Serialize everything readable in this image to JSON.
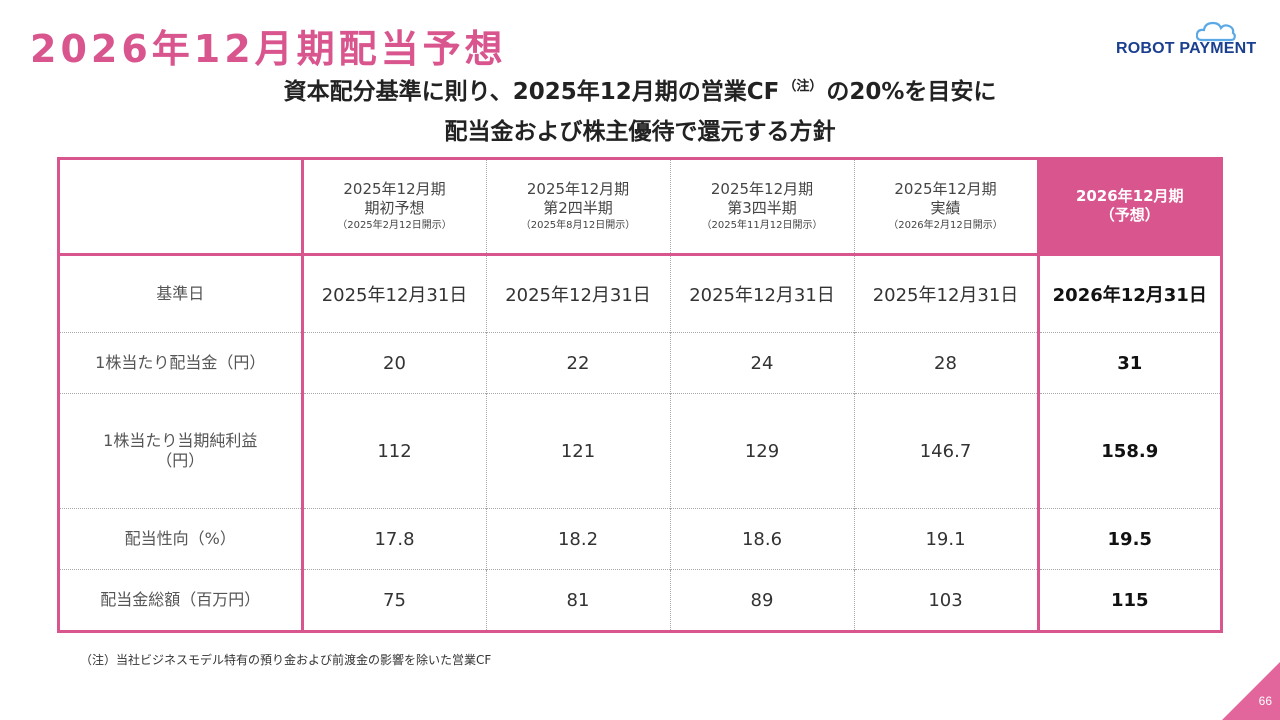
{
  "header": {
    "title": "2026年12月期配当予想",
    "logo_text": "ROBOT PAYMENT"
  },
  "subtitle": {
    "line1_pre": "資本配分基準に則り、2025年12月期の営業CF",
    "note_mark": "（注）",
    "line1_post": "の20%を目安に",
    "line2": "配当金および株主優待で還元する方針"
  },
  "table": {
    "columns": [
      {
        "title": "2025年12月期",
        "subtitle": "期初予想",
        "note": "（2025年2月12日開示）"
      },
      {
        "title": "2025年12月期",
        "subtitle": "第2四半期",
        "note": "（2025年8月12日開示）"
      },
      {
        "title": "2025年12月期",
        "subtitle": "第3四半期",
        "note": "（2025年11月12日開示）"
      },
      {
        "title": "2025年12月期",
        "subtitle": "実績",
        "note": "（2026年2月12日開示）"
      },
      {
        "title": "2026年12月期",
        "subtitle": "（予想）",
        "note": ""
      }
    ],
    "rows": [
      {
        "label": "基準日",
        "label2": "",
        "values": [
          "2025年12月31日",
          "2025年12月31日",
          "2025年12月31日",
          "2025年12月31日",
          "2026年12月31日"
        ]
      },
      {
        "label": "1株当たり配当金（円）",
        "label2": "",
        "values": [
          "20",
          "22",
          "24",
          "28",
          "31"
        ]
      },
      {
        "label": "1株当たり当期純利益",
        "label2": "（円）",
        "values": [
          "112",
          "121",
          "129",
          "146.7",
          "158.9"
        ]
      },
      {
        "label": "配当性向（%）",
        "label2": "",
        "values": [
          "17.8",
          "18.2",
          "18.6",
          "19.1",
          "19.5"
        ]
      },
      {
        "label": "配当金総額（百万円）",
        "label2": "",
        "values": [
          "75",
          "81",
          "89",
          "103",
          "115"
        ]
      }
    ]
  },
  "footnote": "（注）当社ビジネスモデル特有の預り金および前渡金の影響を除いた営業CF",
  "page_number": "66",
  "colors": {
    "accent": "#d9558e",
    "logo_navy": "#1a3f8f",
    "logo_cloud": "#5aa9e6"
  },
  "icons": {
    "logo_mark": "cloud-icon"
  }
}
